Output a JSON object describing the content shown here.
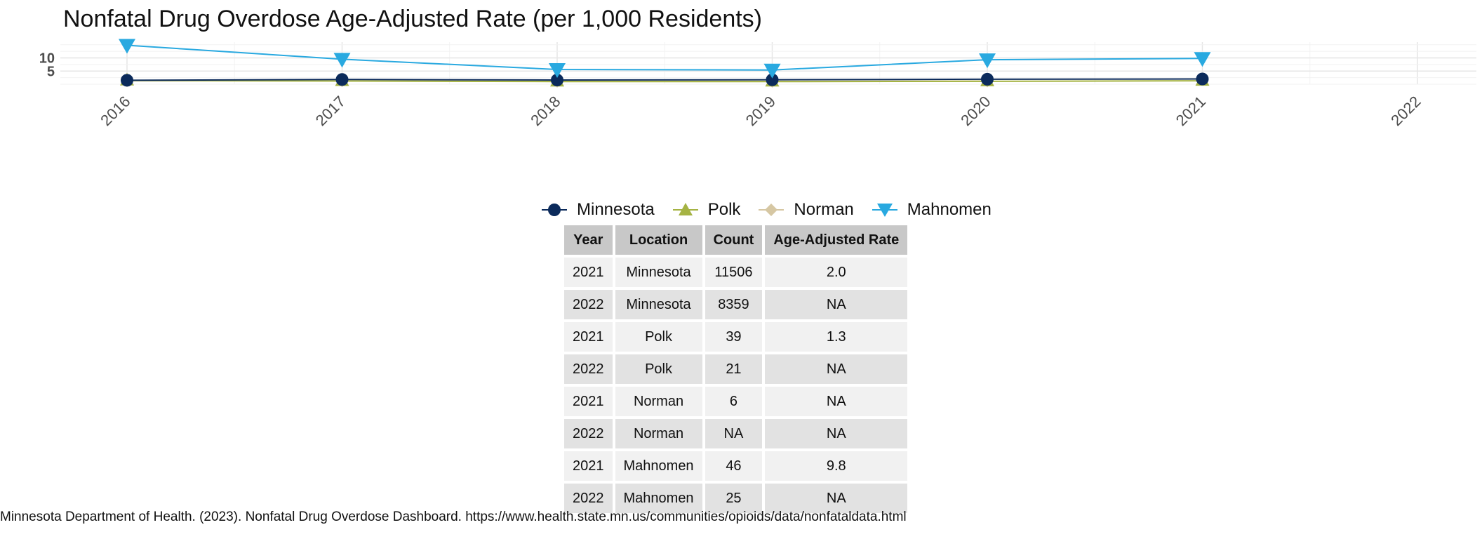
{
  "chart_data": {
    "type": "line",
    "title": "Nonfatal Drug Overdose Age-Adjusted Rate (per 1,000 Residents)",
    "xlabel": "",
    "ylabel": "",
    "x": [
      "2016",
      "2017",
      "2018",
      "2019",
      "2020",
      "2021",
      "2022"
    ],
    "y_ticks": [
      5,
      10
    ],
    "ylim": [
      0,
      16
    ],
    "grid": true,
    "legend_position": "bottom",
    "series": [
      {
        "name": "Minnesota",
        "marker": "circle",
        "color": "#0b2a5b",
        "values": [
          1.5,
          1.8,
          1.6,
          1.7,
          1.9,
          2.0,
          null
        ]
      },
      {
        "name": "Polk",
        "marker": "triangle-up",
        "color": "#a5b343",
        "values": [
          1.4,
          1.2,
          1.0,
          1.0,
          1.1,
          1.3,
          null
        ]
      },
      {
        "name": "Norman",
        "marker": "diamond",
        "color": "#d6c7a3",
        "values": [
          1.3,
          1.3,
          1.1,
          1.1,
          1.2,
          null,
          null
        ]
      },
      {
        "name": "Mahnomen",
        "marker": "triangle-down",
        "color": "#29a9e0",
        "values": [
          14.8,
          9.5,
          5.6,
          5.4,
          9.3,
          9.8,
          null
        ]
      }
    ]
  },
  "table": {
    "headers": [
      "Year",
      "Location",
      "Count",
      "Age-Adjusted Rate"
    ],
    "rows": [
      [
        "2021",
        "Minnesota",
        "11506",
        "2.0"
      ],
      [
        "2022",
        "Minnesota",
        "8359",
        "NA"
      ],
      [
        "2021",
        "Polk",
        "39",
        "1.3"
      ],
      [
        "2022",
        "Polk",
        "21",
        "NA"
      ],
      [
        "2021",
        "Norman",
        "6",
        "NA"
      ],
      [
        "2022",
        "Norman",
        "NA",
        "NA"
      ],
      [
        "2021",
        "Mahnomen",
        "46",
        "9.8"
      ],
      [
        "2022",
        "Mahnomen",
        "25",
        "NA"
      ]
    ]
  },
  "citation": "Minnesota Department of Health. (2023). Nonfatal Drug Overdose Dashboard. https://www.health.state.mn.us/communities/opioids/data/nonfataldata.html"
}
